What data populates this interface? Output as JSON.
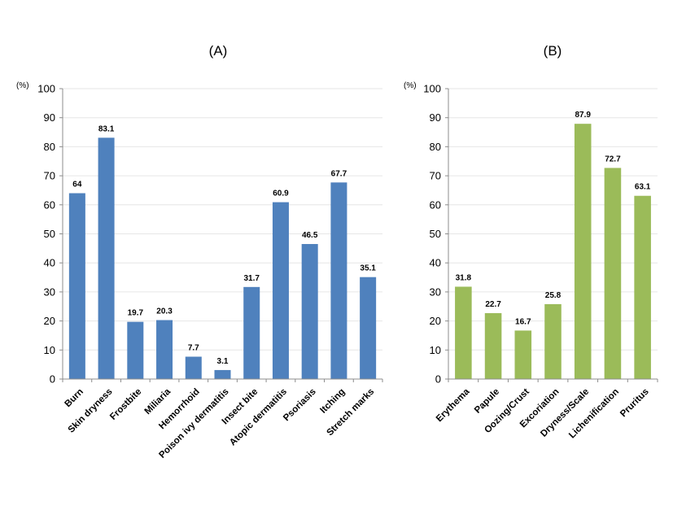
{
  "chart_data": [
    {
      "type": "bar",
      "title": "(A)",
      "ylabel": "(%)",
      "ylim": [
        0,
        100
      ],
      "yticks": [
        0,
        10,
        20,
        30,
        40,
        50,
        60,
        70,
        80,
        90,
        100
      ],
      "grid": true,
      "categories": [
        "Burn",
        "Skin dryness",
        "Frostbite",
        "Miliaria",
        "Hemorrhoid",
        "Poison ivy dermatitis",
        "Insect bite",
        "Atopic dermatitis",
        "Psoriasis",
        "Itching",
        "Stretch marks"
      ],
      "values": [
        64,
        83.1,
        19.7,
        20.3,
        7.7,
        3.1,
        31.7,
        60.9,
        46.5,
        67.7,
        35.1
      ],
      "value_labels": [
        "64",
        "83.1",
        "19.7",
        "20.3",
        "7.7",
        "3.1",
        "31.7",
        "60.9",
        "46.5",
        "67.7",
        "35.1"
      ],
      "color": "#4f81bd"
    },
    {
      "type": "bar",
      "title": "(B)",
      "ylabel": "(%)",
      "ylim": [
        0,
        100
      ],
      "yticks": [
        0,
        10,
        20,
        30,
        40,
        50,
        60,
        70,
        80,
        90,
        100
      ],
      "grid": true,
      "categories": [
        "Erythema",
        "Papule",
        "Oozing/Crust",
        "Excoriation",
        "Dryness/Scale",
        "Lichenification",
        "Pruritus"
      ],
      "values": [
        31.8,
        22.7,
        16.7,
        25.8,
        87.9,
        72.7,
        63.1
      ],
      "value_labels": [
        "31.8",
        "22.7",
        "16.7",
        "25.8",
        "87.9",
        "72.7",
        "63.1"
      ],
      "color": "#9bbb59"
    }
  ]
}
